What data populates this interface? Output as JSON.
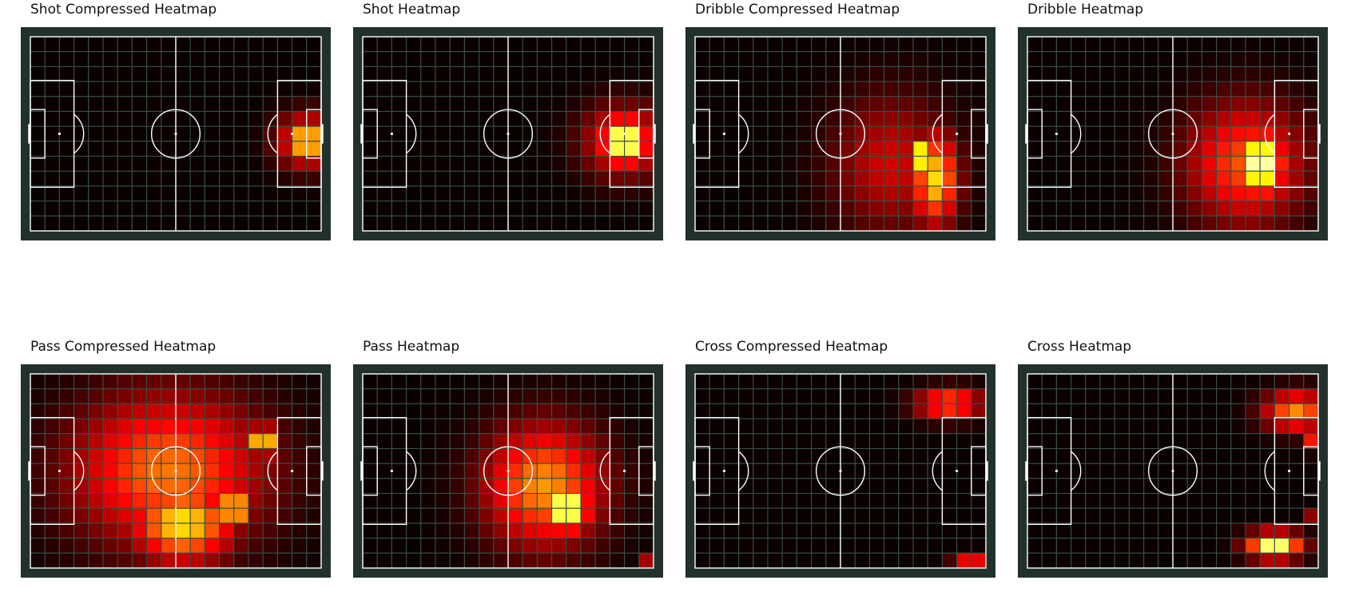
{
  "chart_data": [
    {
      "type": "heatmap",
      "title": "Shot Compressed Heatmap",
      "grid": true,
      "colormap": "hot",
      "bins": [
        20,
        13
      ],
      "hotspots": [
        [
          18.5,
          6.5,
          1.0,
          1.0,
          1.0
        ],
        [
          18.5,
          6.5,
          2.0,
          1.8,
          0.5
        ]
      ]
    },
    {
      "type": "heatmap",
      "title": "Shot Heatmap",
      "grid": true,
      "colormap": "hot",
      "bins": [
        20,
        13
      ],
      "hotspots": [
        [
          17.5,
          6.5,
          1.6,
          1.6,
          1.0
        ],
        [
          17.5,
          6.5,
          2.8,
          2.4,
          0.45
        ]
      ]
    },
    {
      "type": "heatmap",
      "title": "Dribble Compressed Heatmap",
      "grid": true,
      "colormap": "hot",
      "bins": [
        20,
        13
      ],
      "hotspots": [
        [
          15.2,
          7.5,
          0.8,
          1.0,
          1.0
        ],
        [
          16,
          9,
          1.6,
          3.0,
          0.7
        ],
        [
          13,
          8,
          4.0,
          4.5,
          0.3
        ]
      ]
    },
    {
      "type": "heatmap",
      "title": "Dribble Heatmap",
      "grid": true,
      "colormap": "hot",
      "bins": [
        20,
        13
      ],
      "hotspots": [
        [
          15.5,
          8.0,
          1.6,
          2.2,
          1.0
        ],
        [
          14.5,
          8.0,
          4.0,
          4.0,
          0.5
        ]
      ]
    },
    {
      "type": "heatmap",
      "title": "Pass Compressed Heatmap",
      "grid": true,
      "colormap": "hot",
      "bins": [
        20,
        13
      ],
      "hotspots": [
        [
          13.5,
          8.5,
          1.0,
          0.9,
          1.0
        ],
        [
          10,
          9.5,
          3.5,
          2.6,
          0.72
        ],
        [
          15.5,
          4.0,
          1.0,
          1.0,
          0.8
        ],
        [
          9,
          6,
          6.5,
          5.0,
          0.55
        ]
      ]
    },
    {
      "type": "heatmap",
      "title": "Pass Heatmap",
      "grid": true,
      "colormap": "hot",
      "bins": [
        20,
        13
      ],
      "hotspots": [
        [
          13.5,
          8.5,
          1.6,
          1.6,
          1.0
        ],
        [
          12,
          7,
          4.0,
          4.0,
          0.6
        ],
        [
          19.5,
          12.5,
          0.6,
          0.6,
          0.9
        ]
      ]
    },
    {
      "type": "heatmap",
      "title": "Cross Compressed Heatmap",
      "grid": true,
      "colormap": "hot",
      "bins": [
        20,
        13
      ],
      "hotspots": [
        [
          19.5,
          12.5,
          0.5,
          0.5,
          1.0
        ],
        [
          18.5,
          12.5,
          1.2,
          0.7,
          0.65
        ],
        [
          17,
          1.5,
          2.2,
          1.0,
          0.55
        ]
      ]
    },
    {
      "type": "heatmap",
      "title": "Cross Heatmap",
      "grid": true,
      "colormap": "hot",
      "bins": [
        20,
        13
      ],
      "hotspots": [
        [
          19.5,
          9.2,
          0.4,
          0.6,
          1.0
        ],
        [
          16.5,
          11.0,
          1.8,
          0.9,
          0.92
        ],
        [
          18,
          2.0,
          2.2,
          1.3,
          0.58
        ],
        [
          19.5,
          4.0,
          0.6,
          0.6,
          0.8
        ]
      ]
    }
  ]
}
